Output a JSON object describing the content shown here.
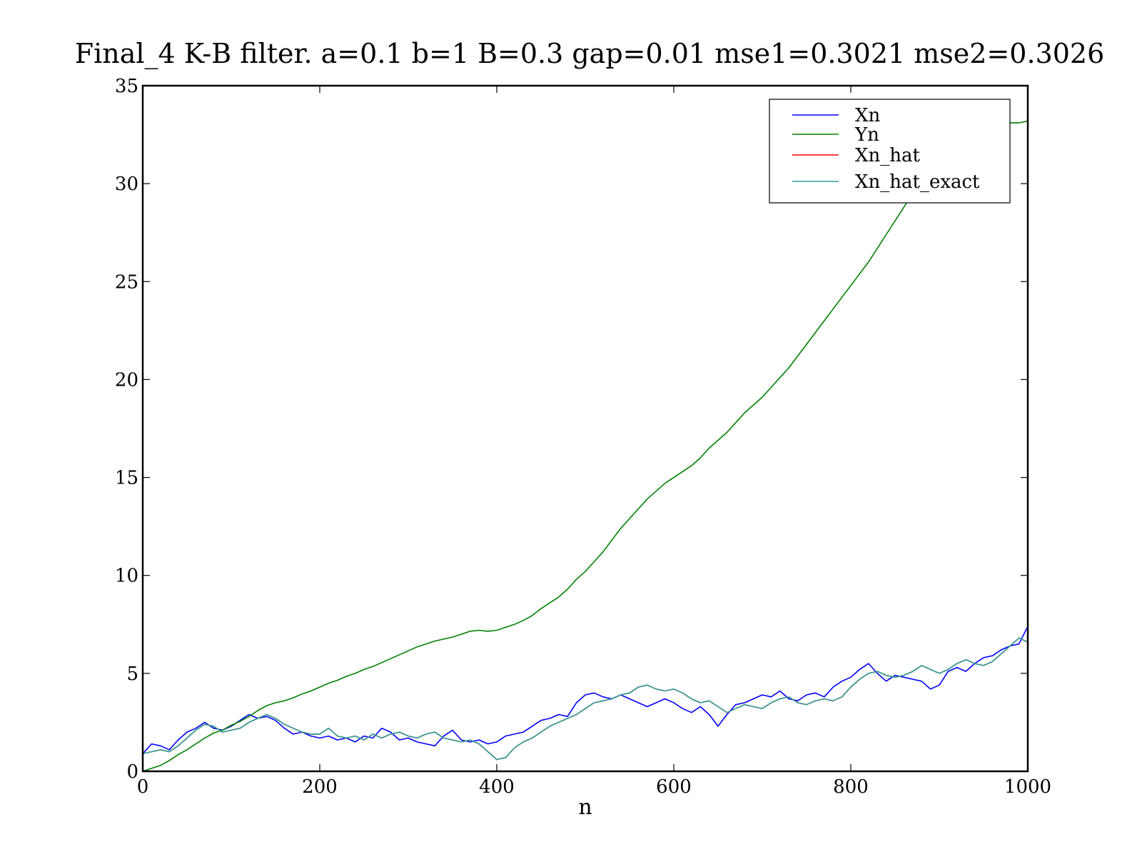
{
  "chart_data": {
    "type": "line",
    "title": "Final_4 K-B filter. a=0.1 b=1 B=0.3 gap=0.01  mse1=0.3021 mse2=0.3026",
    "xlabel": "n",
    "ylabel": "",
    "xlim": [
      0,
      1000
    ],
    "ylim": [
      0,
      35
    ],
    "xticks": [
      0,
      200,
      400,
      600,
      800,
      1000
    ],
    "yticks": [
      0,
      5,
      10,
      15,
      20,
      25,
      30,
      35
    ],
    "grid": false,
    "legend_position": "top-right",
    "series": [
      {
        "name": "Xn",
        "color": "#0000ff",
        "x": [
          0,
          10,
          20,
          30,
          40,
          50,
          60,
          70,
          80,
          90,
          100,
          110,
          120,
          130,
          140,
          150,
          160,
          170,
          180,
          190,
          200,
          210,
          220,
          230,
          240,
          250,
          260,
          270,
          280,
          290,
          300,
          310,
          320,
          330,
          340,
          350,
          360,
          370,
          380,
          390,
          400,
          410,
          420,
          430,
          440,
          450,
          460,
          470,
          480,
          490,
          500,
          510,
          520,
          530,
          540,
          550,
          560,
          570,
          580,
          590,
          600,
          610,
          620,
          630,
          640,
          650,
          660,
          670,
          680,
          690,
          700,
          710,
          720,
          730,
          740,
          750,
          760,
          770,
          780,
          790,
          800,
          810,
          820,
          830,
          840,
          850,
          860,
          870,
          880,
          890,
          900,
          910,
          920,
          930,
          940,
          950,
          960,
          970,
          980,
          990,
          1000
        ],
        "y": [
          0.9,
          1.4,
          1.3,
          1.1,
          1.6,
          2.0,
          2.2,
          2.5,
          2.2,
          2.1,
          2.3,
          2.6,
          2.9,
          2.7,
          2.8,
          2.6,
          2.2,
          1.9,
          2.0,
          1.8,
          1.7,
          1.8,
          1.6,
          1.7,
          1.5,
          1.8,
          1.7,
          2.2,
          2.0,
          1.6,
          1.7,
          1.5,
          1.4,
          1.3,
          1.8,
          2.1,
          1.6,
          1.5,
          1.6,
          1.4,
          1.5,
          1.8,
          1.9,
          2.0,
          2.3,
          2.6,
          2.7,
          2.9,
          2.8,
          3.5,
          3.9,
          4.0,
          3.8,
          3.7,
          3.9,
          3.7,
          3.5,
          3.3,
          3.5,
          3.7,
          3.5,
          3.2,
          3.0,
          3.3,
          2.9,
          2.3,
          2.9,
          3.4,
          3.5,
          3.7,
          3.9,
          3.8,
          4.1,
          3.7,
          3.6,
          3.9,
          4.0,
          3.8,
          4.3,
          4.6,
          4.8,
          5.2,
          5.5,
          5.0,
          4.6,
          4.9,
          4.8,
          4.7,
          4.6,
          4.2,
          4.4,
          5.1,
          5.3,
          5.1,
          5.5,
          5.8,
          5.9,
          6.2,
          6.4,
          6.5,
          7.4
        ]
      },
      {
        "name": "Yn",
        "color": "#008000",
        "x": [
          0,
          10,
          20,
          30,
          40,
          50,
          60,
          70,
          80,
          90,
          100,
          110,
          120,
          130,
          140,
          150,
          160,
          170,
          180,
          190,
          200,
          210,
          220,
          230,
          240,
          250,
          260,
          270,
          280,
          290,
          300,
          310,
          320,
          330,
          340,
          350,
          360,
          370,
          380,
          390,
          400,
          410,
          420,
          430,
          440,
          450,
          460,
          470,
          480,
          490,
          500,
          510,
          520,
          530,
          540,
          550,
          560,
          570,
          580,
          590,
          600,
          610,
          620,
          630,
          640,
          650,
          660,
          670,
          680,
          690,
          700,
          710,
          720,
          730,
          740,
          750,
          760,
          770,
          780,
          790,
          800,
          810,
          820,
          830,
          840,
          850,
          860,
          870,
          880,
          890,
          900,
          910,
          920,
          930,
          940,
          950,
          960,
          970,
          980,
          990,
          1000
        ],
        "y": [
          0.0,
          0.15,
          0.3,
          0.55,
          0.85,
          1.1,
          1.4,
          1.7,
          1.95,
          2.1,
          2.35,
          2.55,
          2.8,
          3.1,
          3.35,
          3.5,
          3.6,
          3.75,
          3.95,
          4.1,
          4.3,
          4.5,
          4.65,
          4.85,
          5.0,
          5.2,
          5.35,
          5.55,
          5.75,
          5.95,
          6.15,
          6.35,
          6.5,
          6.65,
          6.75,
          6.85,
          7.0,
          7.15,
          7.2,
          7.15,
          7.2,
          7.35,
          7.5,
          7.7,
          7.95,
          8.3,
          8.6,
          8.9,
          9.3,
          9.8,
          10.2,
          10.7,
          11.2,
          11.8,
          12.4,
          12.9,
          13.4,
          13.9,
          14.3,
          14.7,
          15.0,
          15.3,
          15.6,
          16.0,
          16.5,
          16.9,
          17.3,
          17.8,
          18.3,
          18.7,
          19.1,
          19.6,
          20.1,
          20.6,
          21.2,
          21.8,
          22.4,
          23.0,
          23.6,
          24.2,
          24.8,
          25.4,
          26.0,
          26.7,
          27.4,
          28.1,
          28.8,
          29.5,
          30.2,
          30.9,
          31.5,
          32.2,
          32.5,
          32.6,
          32.7,
          32.8,
          32.9,
          33.0,
          33.1,
          33.1,
          33.2
        ]
      },
      {
        "name": "Xn_hat",
        "color": "#ff0000",
        "x": [
          0,
          10,
          20,
          30,
          40,
          50,
          60,
          70,
          80,
          90,
          100,
          110,
          120,
          130,
          140,
          150,
          160,
          170,
          180,
          190,
          200,
          210,
          220,
          230,
          240,
          250,
          260,
          270,
          280,
          290,
          300,
          310,
          320,
          330,
          340,
          350,
          360,
          370,
          380,
          390,
          400,
          410,
          420,
          430,
          440,
          450,
          460,
          470,
          480,
          490,
          500,
          510,
          520,
          530,
          540,
          550,
          560,
          570,
          580,
          590,
          600,
          610,
          620,
          630,
          640,
          650,
          660,
          670,
          680,
          690,
          700,
          710,
          720,
          730,
          740,
          750,
          760,
          770,
          780,
          790,
          800,
          810,
          820,
          830,
          840,
          850,
          860,
          870,
          880,
          890,
          900,
          910,
          920,
          930,
          940,
          950,
          960,
          970,
          980,
          990,
          1000
        ],
        "y": [
          0.9,
          1.0,
          1.1,
          1.0,
          1.3,
          1.7,
          2.1,
          2.4,
          2.3,
          2.0,
          2.1,
          2.2,
          2.5,
          2.7,
          2.9,
          2.7,
          2.4,
          2.2,
          2.0,
          1.9,
          1.9,
          2.2,
          1.8,
          1.7,
          1.8,
          1.6,
          1.9,
          1.7,
          1.9,
          2.0,
          1.8,
          1.7,
          1.9,
          2.0,
          1.7,
          1.6,
          1.5,
          1.6,
          1.4,
          1.0,
          0.6,
          0.7,
          1.2,
          1.5,
          1.7,
          2.0,
          2.3,
          2.5,
          2.7,
          2.9,
          3.2,
          3.5,
          3.6,
          3.7,
          3.9,
          4.0,
          4.3,
          4.4,
          4.2,
          4.1,
          4.2,
          4.0,
          3.7,
          3.5,
          3.6,
          3.3,
          3.0,
          3.2,
          3.4,
          3.3,
          3.2,
          3.5,
          3.7,
          3.8,
          3.5,
          3.4,
          3.6,
          3.7,
          3.6,
          3.8,
          4.3,
          4.7,
          5.0,
          5.1,
          4.9,
          4.8,
          4.9,
          5.1,
          5.4,
          5.2,
          5.0,
          5.2,
          5.5,
          5.7,
          5.5,
          5.4,
          5.6,
          6.0,
          6.4,
          6.8,
          6.6
        ]
      },
      {
        "name": "Xn_hat_exact",
        "color": "#2aa19a",
        "x": [
          0,
          10,
          20,
          30,
          40,
          50,
          60,
          70,
          80,
          90,
          100,
          110,
          120,
          130,
          140,
          150,
          160,
          170,
          180,
          190,
          200,
          210,
          220,
          230,
          240,
          250,
          260,
          270,
          280,
          290,
          300,
          310,
          320,
          330,
          340,
          350,
          360,
          370,
          380,
          390,
          400,
          410,
          420,
          430,
          440,
          450,
          460,
          470,
          480,
          490,
          500,
          510,
          520,
          530,
          540,
          550,
          560,
          570,
          580,
          590,
          600,
          610,
          620,
          630,
          640,
          650,
          660,
          670,
          680,
          690,
          700,
          710,
          720,
          730,
          740,
          750,
          760,
          770,
          780,
          790,
          800,
          810,
          820,
          830,
          840,
          850,
          860,
          870,
          880,
          890,
          900,
          910,
          920,
          930,
          940,
          950,
          960,
          970,
          980,
          990,
          1000
        ],
        "y": [
          0.9,
          1.0,
          1.1,
          1.0,
          1.3,
          1.7,
          2.1,
          2.4,
          2.3,
          2.0,
          2.1,
          2.2,
          2.5,
          2.7,
          2.9,
          2.7,
          2.4,
          2.2,
          2.0,
          1.9,
          1.9,
          2.2,
          1.8,
          1.7,
          1.8,
          1.6,
          1.9,
          1.7,
          1.9,
          2.0,
          1.8,
          1.7,
          1.9,
          2.0,
          1.7,
          1.6,
          1.5,
          1.6,
          1.4,
          1.0,
          0.6,
          0.7,
          1.2,
          1.5,
          1.7,
          2.0,
          2.3,
          2.5,
          2.7,
          2.9,
          3.2,
          3.5,
          3.6,
          3.7,
          3.9,
          4.0,
          4.3,
          4.4,
          4.2,
          4.1,
          4.2,
          4.0,
          3.7,
          3.5,
          3.6,
          3.3,
          3.0,
          3.2,
          3.4,
          3.3,
          3.2,
          3.5,
          3.7,
          3.8,
          3.5,
          3.4,
          3.6,
          3.7,
          3.6,
          3.8,
          4.3,
          4.7,
          5.0,
          5.1,
          4.9,
          4.8,
          4.9,
          5.1,
          5.4,
          5.2,
          5.0,
          5.2,
          5.5,
          5.7,
          5.5,
          5.4,
          5.6,
          6.0,
          6.4,
          6.8,
          6.6
        ]
      }
    ]
  }
}
